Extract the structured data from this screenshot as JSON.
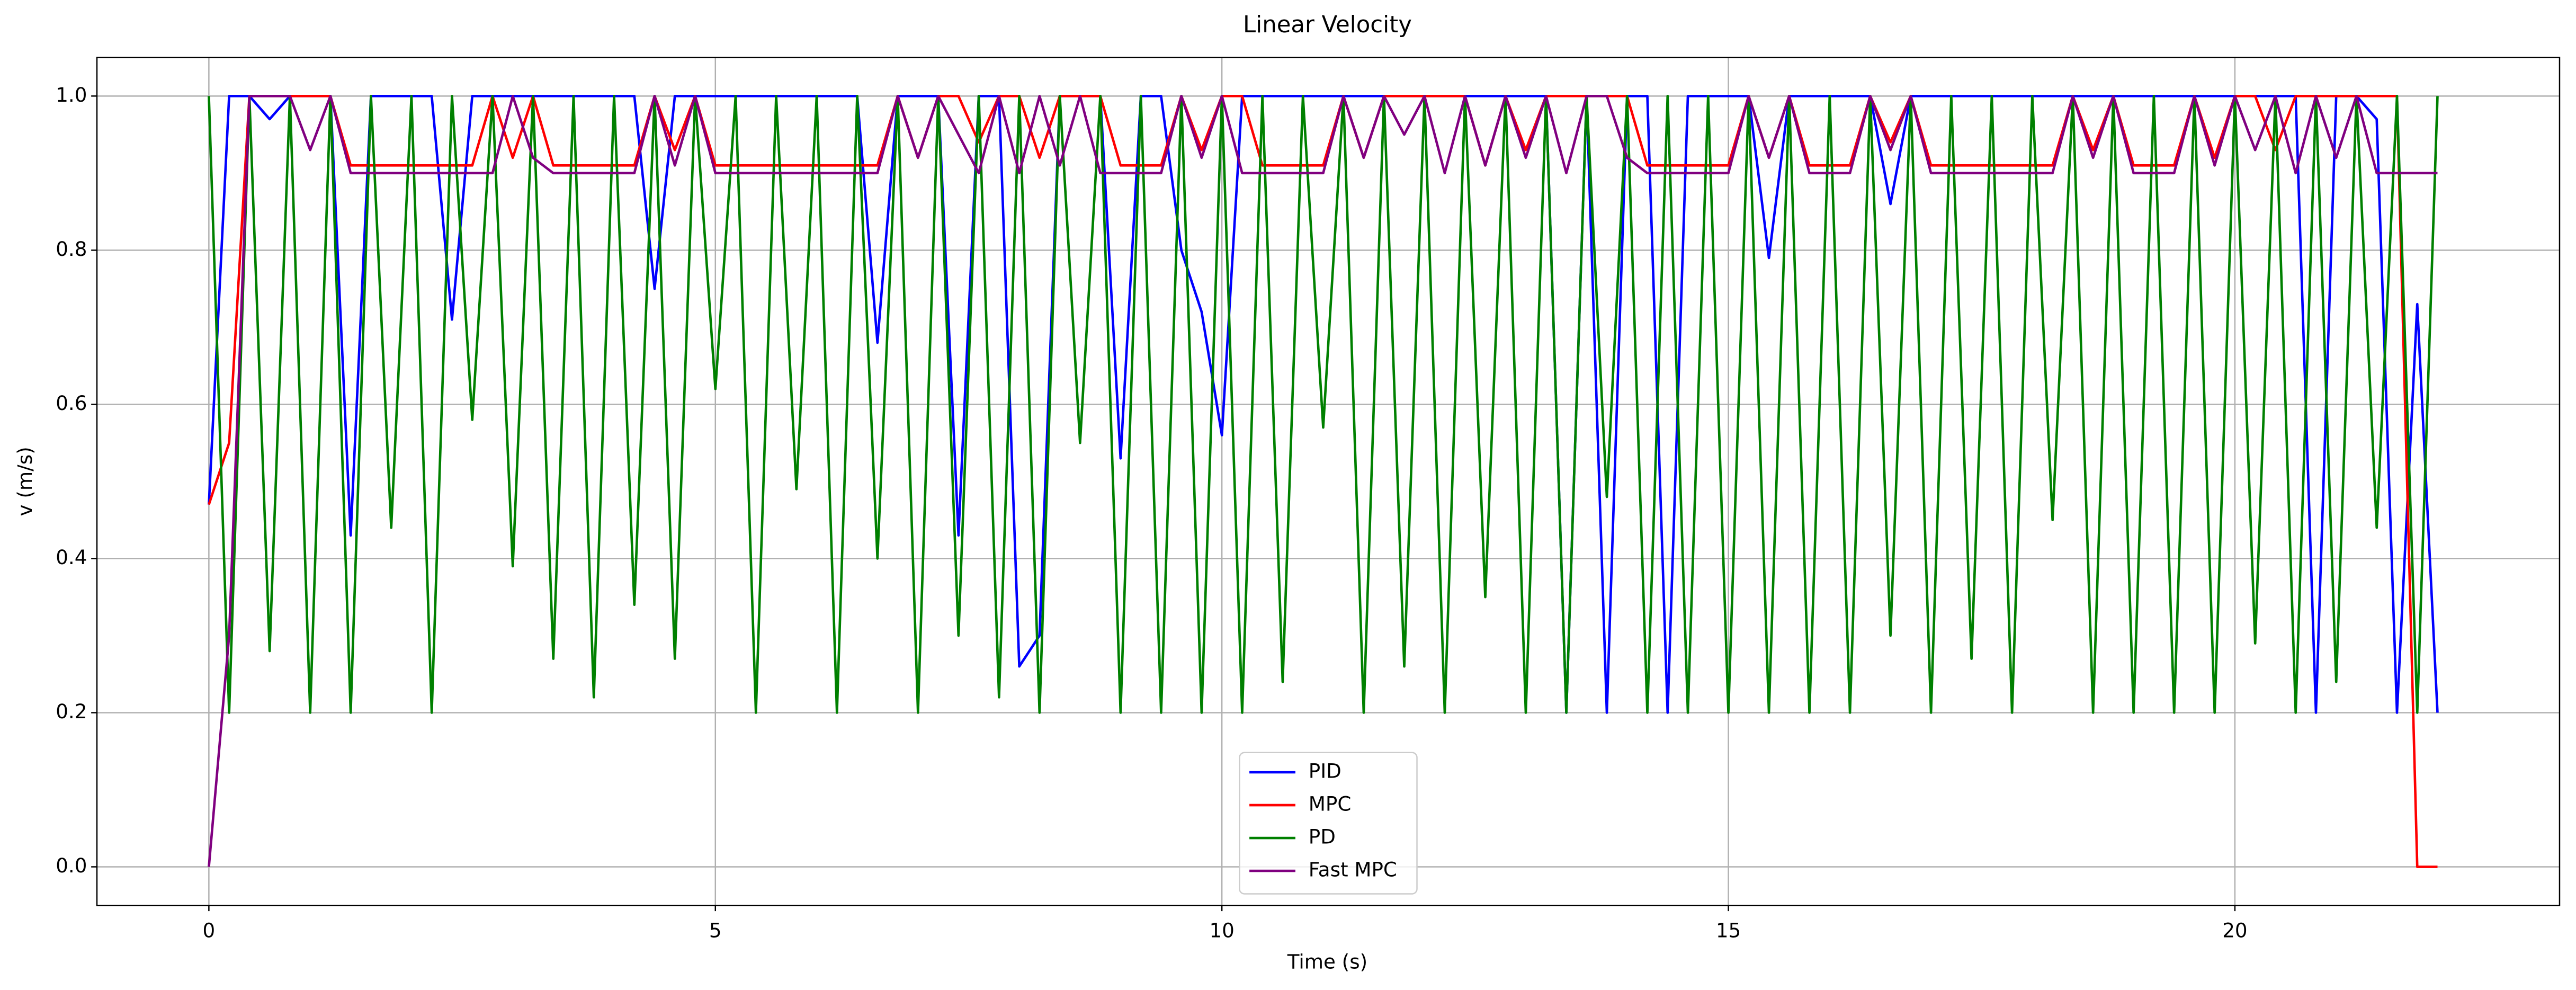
{
  "chart_data": {
    "type": "line",
    "title": "Linear Velocity",
    "x_label": "Time (s)",
    "y_label": "v (m/s)",
    "x": [
      0,
      0.2,
      0.4,
      0.6,
      0.8,
      1,
      1.2,
      1.4,
      1.6,
      1.8,
      2,
      2.2,
      2.4,
      2.6,
      2.8,
      3,
      3.2,
      3.4,
      3.6,
      3.8,
      4,
      4.2,
      4.4,
      4.6,
      4.8,
      5,
      5.2,
      5.4,
      5.6,
      5.8,
      6,
      6.2,
      6.4,
      6.6,
      6.8,
      7,
      7.2,
      7.4,
      7.6,
      7.8,
      8,
      8.2,
      8.4,
      8.6,
      8.8,
      9,
      9.2,
      9.4,
      9.6,
      9.8,
      10,
      10.2,
      10.4,
      10.6,
      10.8,
      11,
      11.2,
      11.4,
      11.6,
      11.8,
      12,
      12.2,
      12.4,
      12.6,
      12.8,
      13,
      13.2,
      13.4,
      13.6,
      13.8,
      14,
      14.2,
      14.4,
      14.6,
      14.8,
      15,
      15.2,
      15.4,
      15.6,
      15.8,
      16,
      16.2,
      16.4,
      16.6,
      16.8,
      17,
      17.2,
      17.4,
      17.6,
      17.8,
      18,
      18.2,
      18.4,
      18.6,
      18.8,
      19,
      19.2,
      19.4,
      19.6,
      19.8,
      20,
      20.2,
      20.4,
      20.6,
      20.8,
      21,
      21.2,
      21.4,
      21.6,
      21.8,
      22
    ],
    "series": [
      {
        "name": "PID",
        "color": "#0000ff",
        "values": [
          0.47,
          1,
          1,
          0.97,
          1,
          1,
          1,
          0.43,
          1,
          1,
          1,
          1,
          0.71,
          1,
          1,
          1,
          1,
          1,
          1,
          1,
          1,
          1,
          0.75,
          1,
          1,
          1,
          1,
          1,
          1,
          1,
          1,
          1,
          1,
          0.68,
          1,
          1,
          1,
          0.43,
          1,
          1,
          0.26,
          0.3,
          1,
          1,
          1,
          0.53,
          1,
          1,
          0.8,
          0.72,
          0.56,
          1,
          1,
          1,
          1,
          1,
          1,
          1,
          1,
          1,
          1,
          1,
          1,
          1,
          1,
          1,
          1,
          0.2,
          1,
          0.2,
          1,
          1,
          0.2,
          1,
          1,
          1,
          1,
          0.79,
          1,
          1,
          1,
          1,
          1,
          0.86,
          1,
          1,
          1,
          1,
          1,
          1,
          1,
          1,
          1,
          1,
          1,
          1,
          1,
          1,
          1,
          1,
          1,
          1,
          1,
          1,
          0.2,
          1,
          1,
          0.97,
          0.2,
          0.73,
          0.2
        ]
      },
      {
        "name": "MPC",
        "color": "#ff0000",
        "values": [
          0.47,
          0.55,
          1,
          1,
          1,
          1,
          1,
          0.91,
          0.91,
          0.91,
          0.91,
          0.91,
          0.91,
          0.91,
          1,
          0.92,
          1,
          0.91,
          0.91,
          0.91,
          0.91,
          0.91,
          1,
          0.93,
          1,
          0.91,
          0.91,
          0.91,
          0.91,
          0.91,
          0.91,
          0.91,
          0.91,
          0.91,
          1,
          0.92,
          1,
          1,
          0.94,
          1,
          1,
          0.92,
          1,
          1,
          1,
          0.91,
          0.91,
          0.91,
          1,
          0.93,
          1,
          1,
          0.91,
          0.91,
          0.91,
          0.91,
          1,
          0.92,
          1,
          1,
          1,
          1,
          1,
          0.91,
          1,
          0.93,
          1,
          1,
          1,
          1,
          1,
          0.91,
          0.91,
          0.91,
          0.91,
          0.91,
          1,
          0.92,
          1,
          0.91,
          0.91,
          0.91,
          1,
          0.94,
          1,
          0.91,
          0.91,
          0.91,
          0.91,
          0.91,
          0.91,
          0.91,
          1,
          0.93,
          1,
          0.91,
          0.91,
          0.91,
          1,
          0.92,
          1,
          1,
          0.93,
          1,
          1,
          1,
          1,
          1,
          1,
          0,
          0
        ]
      },
      {
        "name": "PD",
        "color": "#008000",
        "values": [
          1,
          0.2,
          1,
          0.28,
          1,
          0.2,
          1,
          0.2,
          1,
          0.44,
          1,
          0.2,
          1,
          0.58,
          1,
          0.39,
          1,
          0.27,
          1,
          0.22,
          1,
          0.34,
          1,
          0.27,
          1,
          0.62,
          1,
          0.2,
          1,
          0.49,
          1,
          0.2,
          1,
          0.4,
          1,
          0.2,
          1,
          0.3,
          1,
          0.22,
          1,
          0.2,
          1,
          0.55,
          1,
          0.2,
          1,
          0.2,
          1,
          0.2,
          1,
          0.2,
          1,
          0.24,
          1,
          0.57,
          1,
          0.2,
          1,
          0.26,
          1,
          0.2,
          1,
          0.35,
          1,
          0.2,
          1,
          0.2,
          1,
          0.48,
          1,
          0.2,
          1,
          0.2,
          1,
          0.2,
          1,
          0.2,
          1,
          0.2,
          1,
          0.2,
          1,
          0.3,
          1,
          0.2,
          1,
          0.27,
          1,
          0.2,
          1,
          0.45,
          1,
          0.2,
          1,
          0.2,
          1,
          0.2,
          1,
          0.2,
          1,
          0.29,
          1,
          0.2,
          1,
          0.24,
          1,
          0.44,
          1,
          0.2,
          1
        ]
      },
      {
        "name": "Fast MPC",
        "color": "#800080",
        "values": [
          0,
          0.3,
          1,
          1,
          1,
          0.93,
          1,
          0.9,
          0.9,
          0.9,
          0.9,
          0.9,
          0.9,
          0.9,
          0.9,
          1,
          0.92,
          0.9,
          0.9,
          0.9,
          0.9,
          0.9,
          1,
          0.91,
          1,
          0.9,
          0.9,
          0.9,
          0.9,
          0.9,
          0.9,
          0.9,
          0.9,
          0.9,
          1,
          0.92,
          1,
          0.95,
          0.9,
          1,
          0.9,
          1,
          0.91,
          1,
          0.9,
          0.9,
          0.9,
          0.9,
          1,
          0.92,
          1,
          0.9,
          0.9,
          0.9,
          0.9,
          0.9,
          1,
          0.92,
          1,
          0.95,
          1,
          0.9,
          1,
          0.91,
          1,
          0.92,
          1,
          0.9,
          1,
          1,
          0.92,
          0.9,
          0.9,
          0.9,
          0.9,
          0.9,
          1,
          0.92,
          1,
          0.9,
          0.9,
          0.9,
          1,
          0.93,
          1,
          0.9,
          0.9,
          0.9,
          0.9,
          0.9,
          0.9,
          0.9,
          1,
          0.92,
          1,
          0.9,
          0.9,
          0.9,
          1,
          0.91,
          1,
          0.93,
          1,
          0.9,
          1,
          0.92,
          1,
          0.9,
          0.9,
          0.9,
          0.9
        ]
      }
    ],
    "xlim": [
      -1.105,
      23.205
    ],
    "ylim": [
      -0.05,
      1.05
    ],
    "xticks": [
      0,
      5,
      10,
      15,
      20
    ],
    "yticks": [
      {
        "value": 0,
        "label": "0.0"
      },
      0.2,
      0.4,
      0.6,
      0.8,
      {
        "value": 1,
        "label": "1.0"
      }
    ],
    "grid": true,
    "legend": "lower center"
  }
}
